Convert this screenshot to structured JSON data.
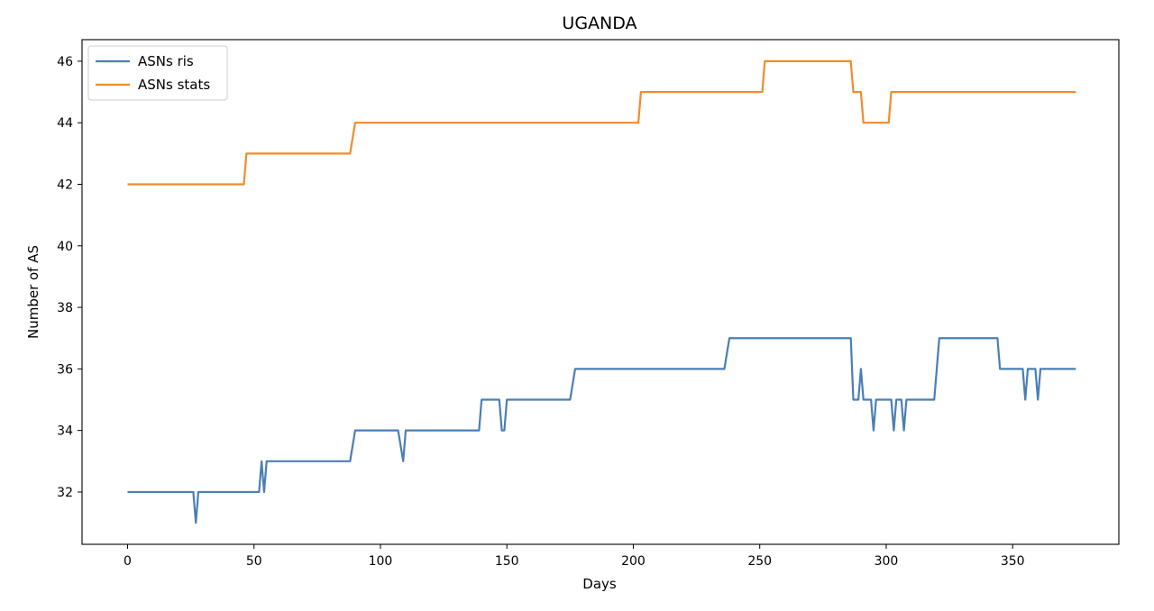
{
  "chart_data": {
    "type": "line",
    "title": "UGANDA",
    "xlabel": "Days",
    "ylabel": "Number of AS",
    "xlim": [
      -18,
      392
    ],
    "ylim": [
      30.3,
      46.7
    ],
    "x_ticks": [
      0,
      50,
      100,
      150,
      200,
      250,
      300,
      350
    ],
    "y_ticks": [
      32,
      34,
      36,
      38,
      40,
      42,
      44,
      46
    ],
    "grid": false,
    "legend_position": "upper left",
    "series": [
      {
        "name": "ASNs ris",
        "color": "#4a7fb5",
        "points": [
          [
            0,
            32
          ],
          [
            26,
            32
          ],
          [
            27,
            31
          ],
          [
            28,
            32
          ],
          [
            52,
            32
          ],
          [
            53,
            33
          ],
          [
            54,
            32
          ],
          [
            55,
            33
          ],
          [
            88,
            33
          ],
          [
            90,
            34
          ],
          [
            107,
            34
          ],
          [
            109,
            33
          ],
          [
            110,
            34
          ],
          [
            139,
            34
          ],
          [
            140,
            35
          ],
          [
            147,
            35
          ],
          [
            148,
            34
          ],
          [
            149,
            34
          ],
          [
            150,
            35
          ],
          [
            175,
            35
          ],
          [
            177,
            36
          ],
          [
            236,
            36
          ],
          [
            238,
            37
          ],
          [
            286,
            37
          ],
          [
            287,
            35
          ],
          [
            289,
            35
          ],
          [
            290,
            36
          ],
          [
            291,
            35
          ],
          [
            294,
            35
          ],
          [
            295,
            34
          ],
          [
            296,
            35
          ],
          [
            302,
            35
          ],
          [
            303,
            34
          ],
          [
            304,
            35
          ],
          [
            306,
            35
          ],
          [
            307,
            34
          ],
          [
            308,
            35
          ],
          [
            319,
            35
          ],
          [
            321,
            37
          ],
          [
            344,
            37
          ],
          [
            345,
            36
          ],
          [
            354,
            36
          ],
          [
            355,
            35
          ],
          [
            356,
            36
          ],
          [
            359,
            36
          ],
          [
            360,
            35
          ],
          [
            361,
            36
          ],
          [
            375,
            36
          ]
        ]
      },
      {
        "name": "ASNs stats",
        "color": "#f28b2a",
        "points": [
          [
            0,
            42
          ],
          [
            46,
            42
          ],
          [
            47,
            43
          ],
          [
            88,
            43
          ],
          [
            90,
            44
          ],
          [
            202,
            44
          ],
          [
            203,
            45
          ],
          [
            251,
            45
          ],
          [
            252,
            46
          ],
          [
            286,
            46
          ],
          [
            287,
            45
          ],
          [
            290,
            45
          ],
          [
            291,
            44
          ],
          [
            301,
            44
          ],
          [
            302,
            45
          ],
          [
            375,
            45
          ]
        ]
      }
    ]
  }
}
